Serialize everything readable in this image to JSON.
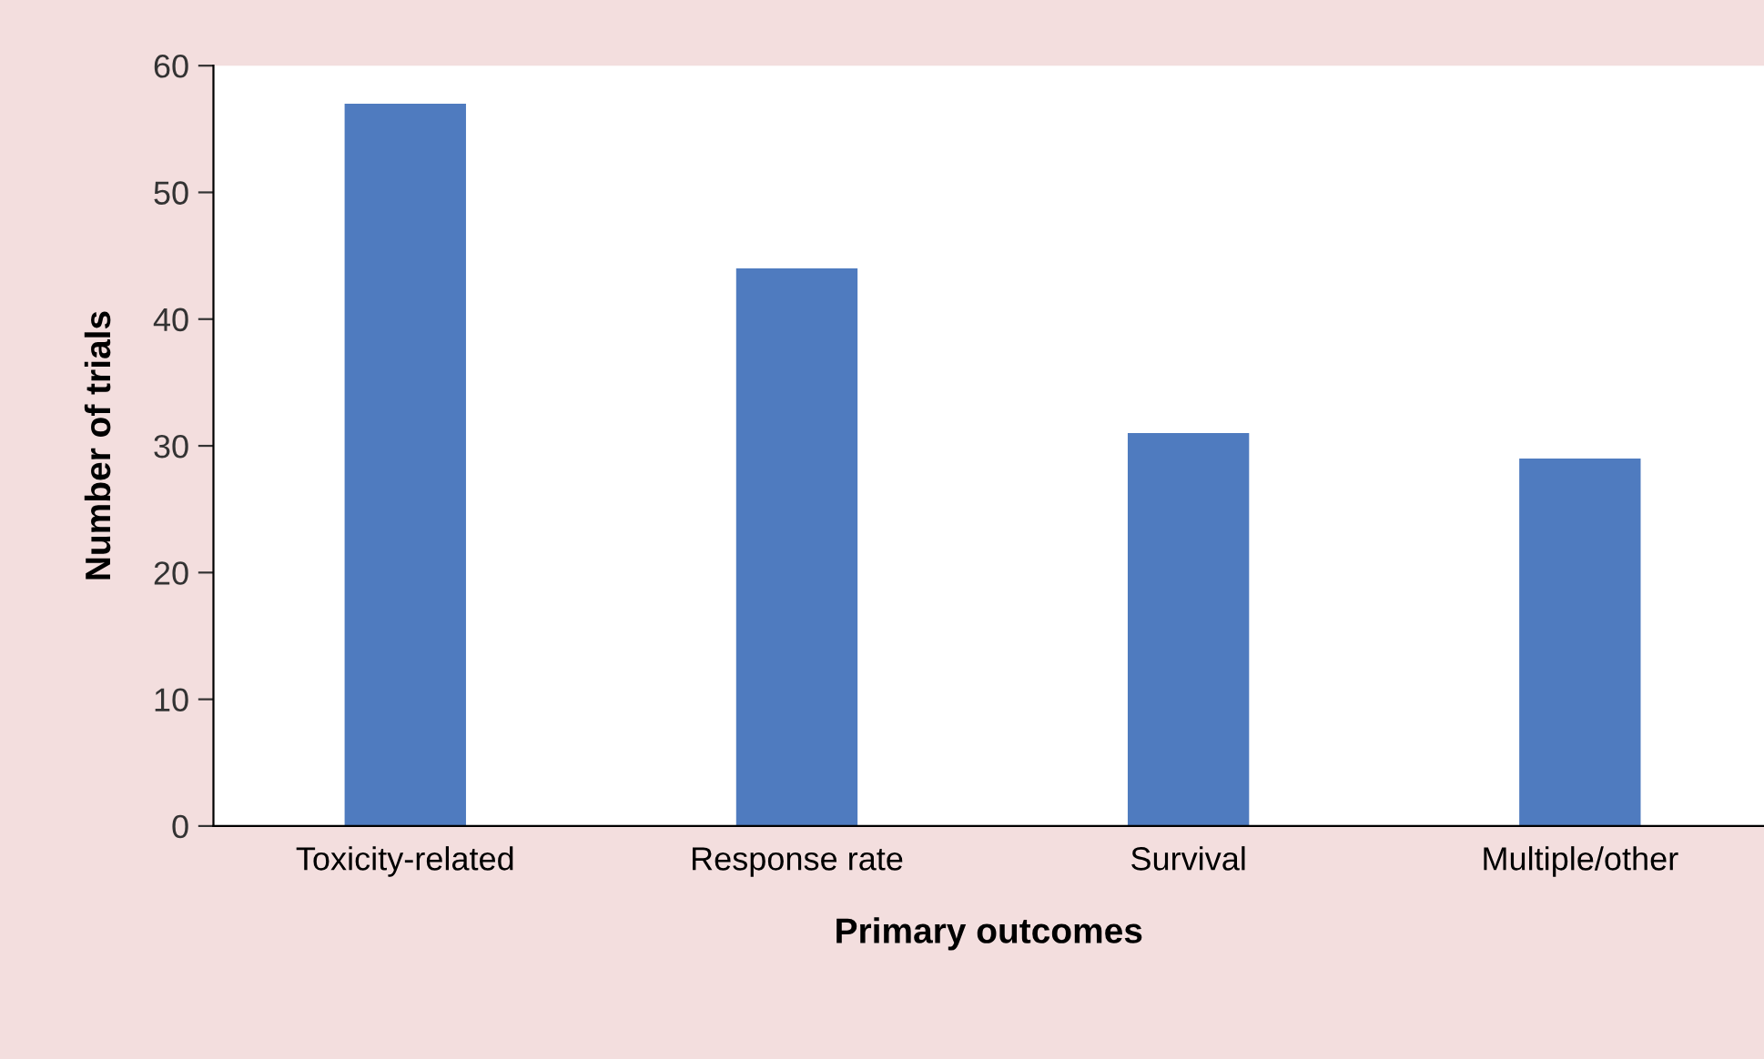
{
  "chart_data": {
    "type": "bar",
    "xlabel": "Primary outcomes",
    "ylabel": "Number of trials",
    "categories": [
      "Toxicity-related",
      "Response rate",
      "Survival",
      "Multiple/other"
    ],
    "values": [
      57,
      44,
      31,
      29
    ],
    "color": "#4f7bbf",
    "ylim": [
      0,
      60
    ],
    "yticks": [
      0,
      10,
      20,
      30,
      40,
      50,
      60
    ],
    "grid": false
  }
}
